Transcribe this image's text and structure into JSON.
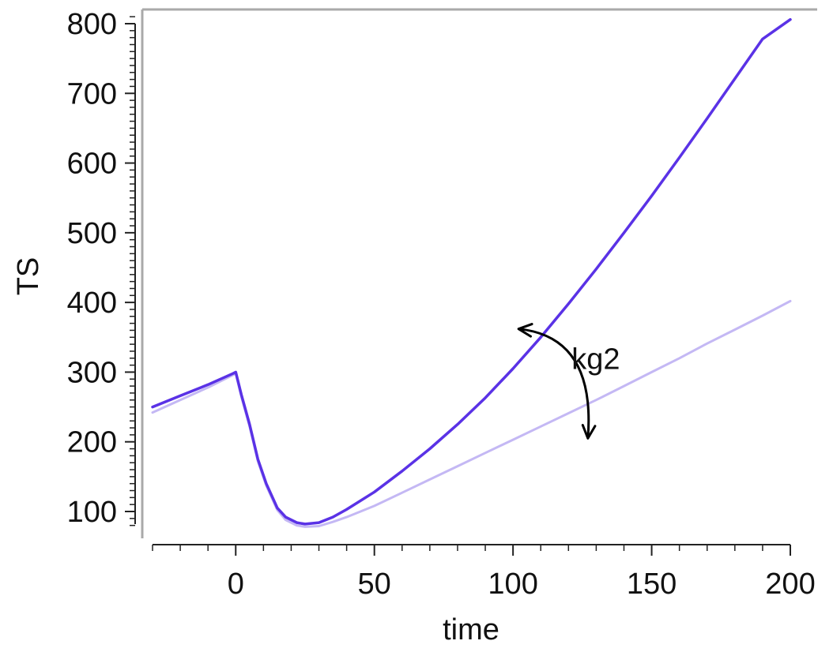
{
  "chart_data": {
    "type": "line",
    "title": "",
    "xlabel": "time",
    "ylabel": "TS",
    "xlim": [
      -30,
      200
    ],
    "ylim": [
      70,
      810
    ],
    "x_ticks": [
      0,
      50,
      100,
      150,
      200
    ],
    "y_ticks": [
      100,
      200,
      300,
      400,
      500,
      600,
      700,
      800
    ],
    "grid": false,
    "series": [
      {
        "color": "#5a32e6",
        "points": [
          [
            -30,
            250
          ],
          [
            -20,
            266
          ],
          [
            -10,
            282
          ],
          [
            -1,
            298
          ],
          [
            0,
            300
          ],
          [
            2,
            268
          ],
          [
            5,
            225
          ],
          [
            8,
            175
          ],
          [
            11,
            140
          ],
          [
            15,
            105
          ],
          [
            18,
            92
          ],
          [
            22,
            84
          ],
          [
            25,
            82
          ],
          [
            30,
            84
          ],
          [
            35,
            92
          ],
          [
            40,
            103
          ],
          [
            50,
            128
          ],
          [
            60,
            158
          ],
          [
            70,
            190
          ],
          [
            80,
            225
          ],
          [
            90,
            263
          ],
          [
            100,
            305
          ],
          [
            110,
            350
          ],
          [
            120,
            398
          ],
          [
            130,
            448
          ],
          [
            140,
            500
          ],
          [
            150,
            553
          ],
          [
            160,
            608
          ],
          [
            170,
            664
          ],
          [
            180,
            721
          ],
          [
            190,
            778
          ],
          [
            200,
            806
          ]
        ]
      },
      {
        "color": "#c4b8f4",
        "points": [
          [
            -30,
            242
          ],
          [
            -20,
            260
          ],
          [
            -10,
            278
          ],
          [
            -1,
            296
          ],
          [
            0,
            298
          ],
          [
            2,
            265
          ],
          [
            5,
            222
          ],
          [
            8,
            172
          ],
          [
            11,
            137
          ],
          [
            15,
            102
          ],
          [
            18,
            88
          ],
          [
            22,
            80
          ],
          [
            25,
            78
          ],
          [
            30,
            79
          ],
          [
            35,
            85
          ],
          [
            40,
            92
          ],
          [
            50,
            108
          ],
          [
            60,
            127
          ],
          [
            70,
            146
          ],
          [
            80,
            165
          ],
          [
            90,
            184
          ],
          [
            100,
            203
          ],
          [
            110,
            222
          ],
          [
            120,
            241
          ],
          [
            130,
            260
          ],
          [
            140,
            280
          ],
          [
            150,
            300
          ],
          [
            160,
            320
          ],
          [
            170,
            341
          ],
          [
            180,
            361
          ],
          [
            190,
            381
          ],
          [
            200,
            402
          ]
        ]
      }
    ],
    "annotations": [
      {
        "text": "kg2",
        "type": "curved-double-arrow",
        "from": [
          102,
          362
        ],
        "to": [
          127,
          205
        ],
        "label_at": [
          127,
          325
        ]
      }
    ]
  }
}
